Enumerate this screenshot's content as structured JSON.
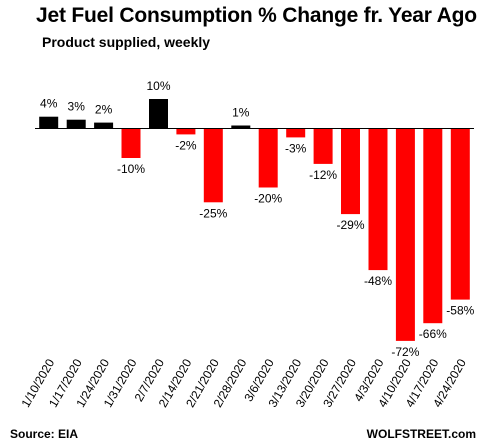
{
  "chart_data": {
    "type": "bar",
    "title": "Jet Fuel Consumption  % Change fr. Year Ago",
    "subtitle": "Product supplied, weekly",
    "categories": [
      "1/10/2020",
      "1/17/2020",
      "1/24/2020",
      "1/31/2020",
      "2/7/2020",
      "2/14/2020",
      "2/21/2020",
      "2/28/2020",
      "3/6/2020",
      "3/13/2020",
      "3/20/2020",
      "3/27/2020",
      "4/3/2020",
      "4/10/2020",
      "4/17/2020",
      "4/24/2020"
    ],
    "values": [
      4,
      3,
      2,
      -10,
      10,
      -2,
      -25,
      1,
      -20,
      -3,
      -12,
      -29,
      -48,
      -72,
      -66,
      -58
    ],
    "value_labels": [
      "4%",
      "3%",
      "2%",
      "-10%",
      "10%",
      "-2%",
      "-25%",
      "1%",
      "-20%",
      "-3%",
      "-12%",
      "-29%",
      "-48%",
      "-72%",
      "-66%",
      "-58%"
    ],
    "unit": "%",
    "ylim": [
      -75,
      12
    ],
    "grid": false,
    "colors": {
      "positive": "#000000",
      "negative": "#ff0000",
      "axis": "#000000"
    }
  },
  "footer": {
    "source": "Source: EIA",
    "brand": "WOLFSTREET.com"
  }
}
